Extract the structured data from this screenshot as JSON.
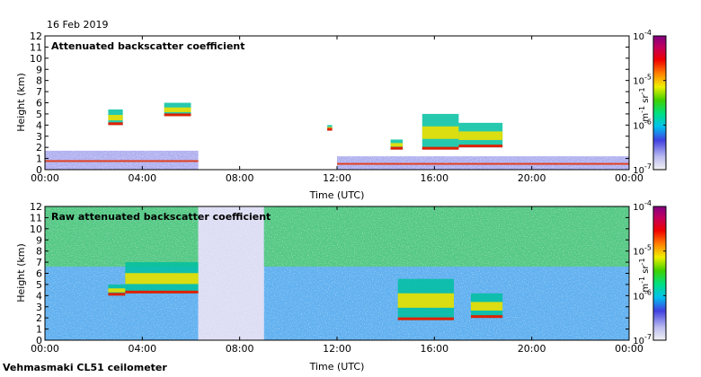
{
  "date": "16 Feb 2019",
  "footer": "Vehmasmaki CL51 ceilometer",
  "chart_data": [
    {
      "type": "heatmap",
      "title": "Attenuated backscatter coefficient",
      "xlabel": "Time (UTC)",
      "ylabel": "Height (km)",
      "xticks": [
        "00:00",
        "04:00",
        "08:00",
        "12:00",
        "16:00",
        "20:00",
        "00:00"
      ],
      "xlim": [
        0,
        24
      ],
      "ylim": [
        0,
        12
      ],
      "yticks": [
        0,
        1,
        2,
        3,
        4,
        5,
        6,
        7,
        8,
        9,
        10,
        11,
        12
      ],
      "colorbar": {
        "scale": "log",
        "range": [
          1e-07,
          0.0001
        ],
        "ticks": [
          "10-7",
          "10-6",
          "10-5",
          "10-4"
        ],
        "label": "m-1 sr-1"
      },
      "features": [
        {
          "kind": "boundary-layer",
          "t_start": 0,
          "t_end": 6.3,
          "top_km": 1.7
        },
        {
          "kind": "boundary-layer",
          "t_start": 12,
          "t_end": 24,
          "top_km": 1.2
        },
        {
          "kind": "cloud",
          "t_start": 2.6,
          "t_end": 3.2,
          "base_km": 4.0,
          "top_km": 5.4
        },
        {
          "kind": "cloud",
          "t_start": 4.9,
          "t_end": 6.0,
          "base_km": 4.8,
          "top_km": 6.0
        },
        {
          "kind": "cloud",
          "t_start": 11.6,
          "t_end": 11.8,
          "base_km": 3.5,
          "top_km": 4.0
        },
        {
          "kind": "cloud",
          "t_start": 14.2,
          "t_end": 14.7,
          "base_km": 1.8,
          "top_km": 2.7
        },
        {
          "kind": "cloud",
          "t_start": 15.5,
          "t_end": 17.0,
          "base_km": 1.8,
          "top_km": 5.0
        },
        {
          "kind": "cloud",
          "t_start": 17.0,
          "t_end": 18.8,
          "base_km": 2.0,
          "top_km": 4.2
        }
      ]
    },
    {
      "type": "heatmap",
      "title": "Raw attenuated backscatter coefficient",
      "xlabel": "Time (UTC)",
      "ylabel": "Height (km)",
      "xticks": [
        "00:00",
        "04:00",
        "08:00",
        "12:00",
        "16:00",
        "20:00",
        "00:00"
      ],
      "xlim": [
        0,
        24
      ],
      "ylim": [
        0,
        12
      ],
      "yticks": [
        0,
        1,
        2,
        3,
        4,
        5,
        6,
        7,
        8,
        9,
        10,
        11,
        12
      ],
      "colorbar": {
        "scale": "log",
        "range": [
          1e-07,
          0.0001
        ],
        "ticks": [
          "10-7",
          "10-6",
          "10-5",
          "10-4"
        ],
        "label": "m-1 sr-1"
      },
      "features": [
        {
          "kind": "noise-high",
          "t_start": 0,
          "t_end": 6.3
        },
        {
          "kind": "noise-low",
          "t_start": 6.3,
          "t_end": 9.0
        },
        {
          "kind": "noise-high",
          "t_start": 9.0,
          "t_end": 24
        },
        {
          "kind": "cloud",
          "t_start": 2.6,
          "t_end": 3.3,
          "base_km": 4.0,
          "top_km": 5.0
        },
        {
          "kind": "cloud",
          "t_start": 3.3,
          "t_end": 6.3,
          "base_km": 4.2,
          "top_km": 7.0
        },
        {
          "kind": "cloud",
          "t_start": 14.5,
          "t_end": 16.8,
          "base_km": 1.8,
          "top_km": 5.5
        },
        {
          "kind": "cloud",
          "t_start": 17.5,
          "t_end": 18.8,
          "base_km": 2.0,
          "top_km": 4.2
        }
      ]
    }
  ]
}
